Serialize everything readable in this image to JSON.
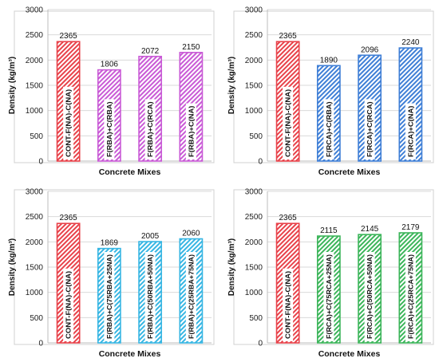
{
  "chart_data": [
    {
      "type": "bar",
      "categories": [
        "CONT-F(NA)-C(NA)",
        "F(RBA)+C(RBA)",
        "F(RBA)+C(RCA)",
        "F(RBA)+C(NA)"
      ],
      "values": [
        2365,
        1806,
        2072,
        2150
      ],
      "colors": [
        "#e8424a",
        "#c95ad6",
        "#c95ad6",
        "#c95ad6"
      ],
      "xlabel": "Concrete Mixes",
      "ylabel": "Density (kg/m³)",
      "ylim": [
        0,
        3000
      ],
      "yticks": [
        0,
        500,
        1000,
        1500,
        2000,
        2500,
        3000
      ],
      "grid": true
    },
    {
      "type": "bar",
      "categories": [
        "CONT-F(NA)-C(NA)",
        "F(RCA)+C(RBA)",
        "F(RCA)+C(RCA)",
        "F(RCA)+C(NA)"
      ],
      "values": [
        2365,
        1890,
        2096,
        2240
      ],
      "colors": [
        "#e8424a",
        "#3f7fd6",
        "#3f7fd6",
        "#3f7fd6"
      ],
      "xlabel": "Concrete Mixes",
      "ylabel": "Density (kg/m³)",
      "ylim": [
        0,
        3000
      ],
      "yticks": [
        0,
        500,
        1000,
        1500,
        2000,
        2500,
        3000
      ],
      "grid": true
    },
    {
      "type": "bar",
      "categories": [
        "CONT-F(NA)-C(NA)",
        "F(RBA)+C(75RBA+25NA)",
        "F(RBA)+C(50RBA+50NA)",
        "F(RBA)+C(25RBA+75NA)"
      ],
      "values": [
        2365,
        1869,
        2005,
        2060
      ],
      "colors": [
        "#e8424a",
        "#37b6e3",
        "#37b6e3",
        "#37b6e3"
      ],
      "xlabel": "Concrete Mixes",
      "ylabel": "Density (kg/m³)",
      "ylim": [
        0,
        3000
      ],
      "yticks": [
        0,
        500,
        1000,
        1500,
        2000,
        2500,
        3000
      ],
      "grid": true
    },
    {
      "type": "bar",
      "categories": [
        "CONT-F(NA)-C(NA)",
        "F(RCA)+C(75RCA+25NA)",
        "F(RCA)+C(50RCA+50NA)",
        "F(RCA)+C(25RCA+75NA)"
      ],
      "values": [
        2365,
        2115,
        2145,
        2179
      ],
      "colors": [
        "#e8424a",
        "#3cb55a",
        "#3cb55a",
        "#3cb55a"
      ],
      "xlabel": "Concrete Mixes",
      "ylabel": "Density (kg/m³)",
      "ylim": [
        0,
        3000
      ],
      "yticks": [
        0,
        500,
        1000,
        1500,
        2000,
        2500,
        3000
      ],
      "grid": true
    }
  ]
}
